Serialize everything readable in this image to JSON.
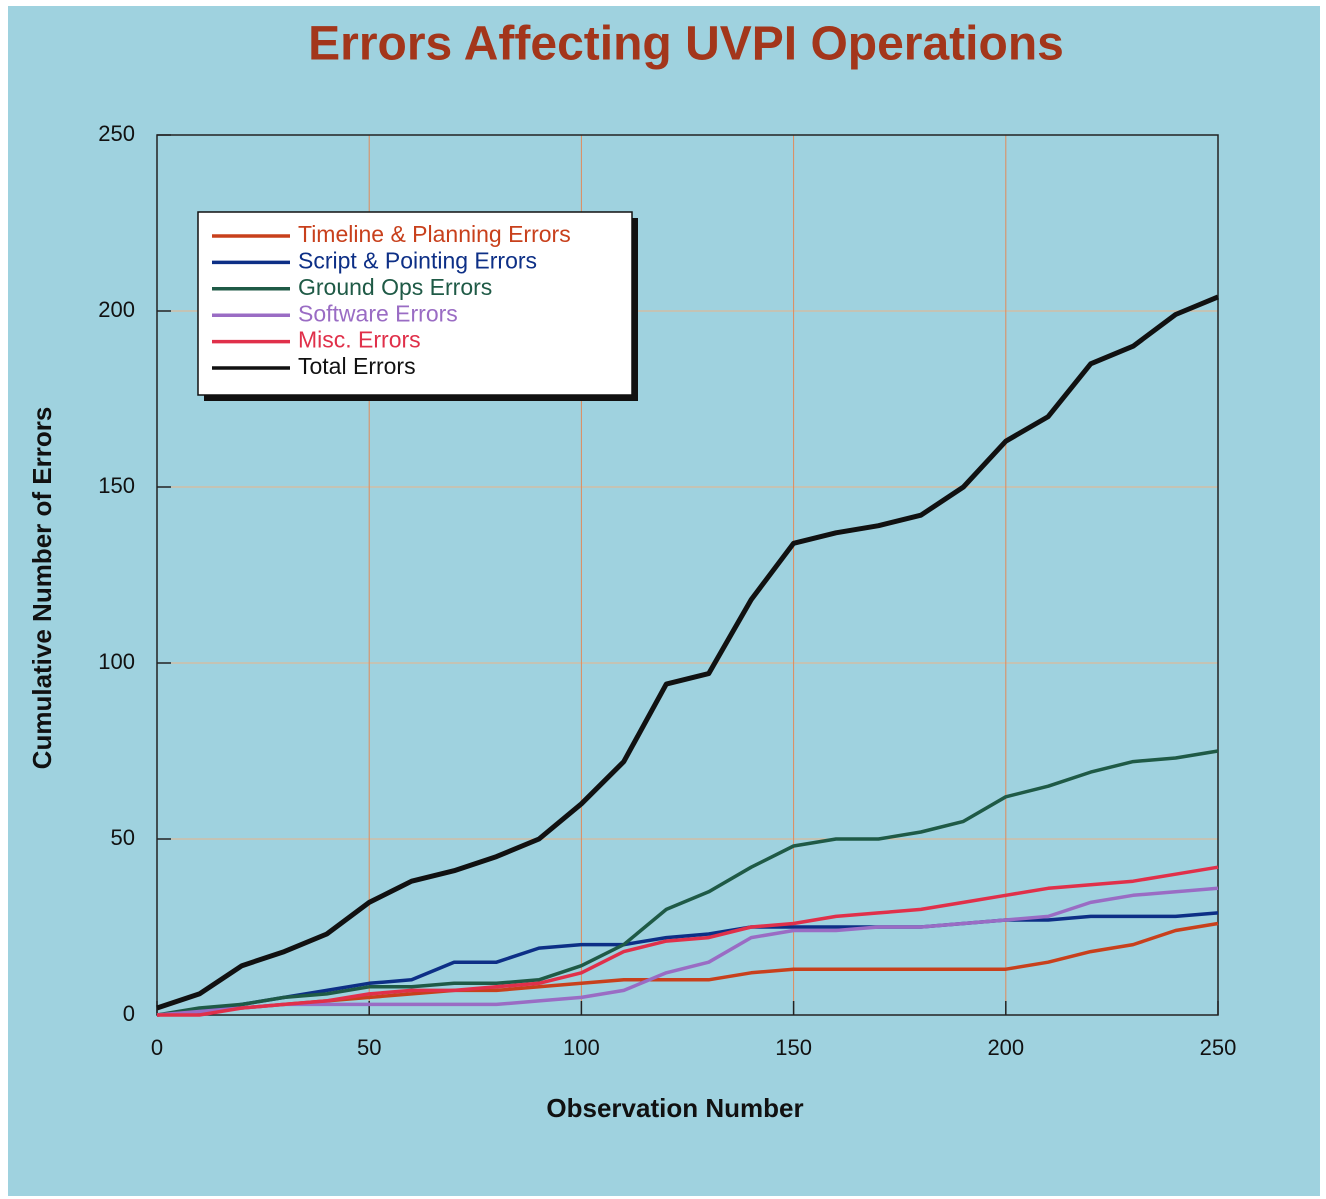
{
  "chart_data": {
    "type": "line",
    "title": "Errors  Affecting  UVPI  Operations",
    "x_label": "Observation  Number",
    "y_label": "Cumulative Number of Errors",
    "x": [
      0,
      10,
      20,
      30,
      40,
      50,
      60,
      70,
      80,
      90,
      100,
      110,
      120,
      130,
      140,
      150,
      160,
      170,
      180,
      190,
      200,
      210,
      220,
      230,
      240,
      250
    ],
    "series": [
      {
        "name": "Timeline & Planning Errors",
        "color": "#c8401c",
        "values": [
          0,
          1,
          2,
          3,
          4,
          5,
          6,
          7,
          7,
          8,
          9,
          10,
          10,
          10,
          12,
          13,
          13,
          13,
          13,
          13,
          13,
          15,
          18,
          20,
          24,
          26
        ]
      },
      {
        "name": "Script & Pointing Errors",
        "color": "#0d2f86",
        "values": [
          0,
          1,
          3,
          5,
          7,
          9,
          10,
          15,
          15,
          19,
          20,
          20,
          22,
          23,
          25,
          25,
          25,
          25,
          25,
          26,
          27,
          27,
          28,
          28,
          28,
          29
        ]
      },
      {
        "name": "Ground Ops Errors",
        "color": "#1f5a46",
        "values": [
          0,
          2,
          3,
          5,
          6,
          8,
          8,
          9,
          9,
          10,
          14,
          20,
          30,
          35,
          42,
          48,
          50,
          50,
          52,
          55,
          62,
          65,
          69,
          72,
          73,
          75
        ]
      },
      {
        "name": "Software Errors",
        "color": "#9a6cc4",
        "values": [
          0,
          1,
          2,
          3,
          3,
          3,
          3,
          3,
          3,
          4,
          5,
          7,
          12,
          15,
          22,
          24,
          24,
          25,
          25,
          26,
          27,
          28,
          32,
          34,
          35,
          36
        ]
      },
      {
        "name": "Misc. Errors",
        "color": "#e0304a",
        "values": [
          0,
          0,
          2,
          3,
          4,
          6,
          7,
          7,
          8,
          9,
          12,
          18,
          21,
          22,
          25,
          26,
          28,
          29,
          30,
          32,
          34,
          36,
          37,
          38,
          40,
          42
        ]
      },
      {
        "name": "Total Errors",
        "color": "#111111",
        "values": [
          2,
          6,
          14,
          18,
          23,
          32,
          38,
          41,
          45,
          50,
          60,
          72,
          94,
          97,
          118,
          134,
          137,
          139,
          142,
          150,
          163,
          170,
          185,
          190,
          199,
          204
        ]
      }
    ],
    "xlim": [
      0,
      250
    ],
    "ylim": [
      0,
      250
    ],
    "xticks": [
      0,
      50,
      100,
      150,
      200,
      250
    ],
    "yticks": [
      0,
      50,
      100,
      150,
      200,
      250
    ],
    "grid": true,
    "legend": "upper left"
  }
}
